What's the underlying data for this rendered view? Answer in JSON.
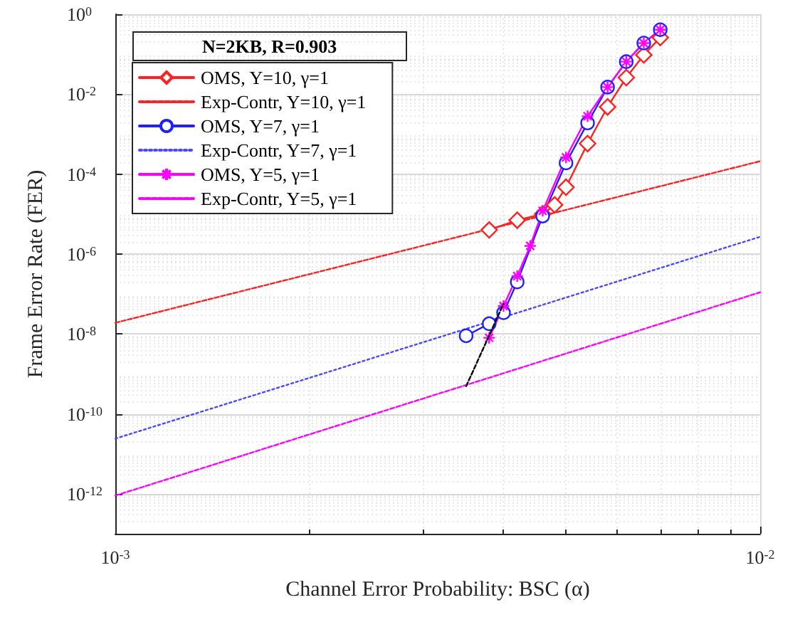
{
  "chart_data": {
    "type": "line",
    "xlabel": "Channel Error Probability: BSC (α)",
    "ylabel": "Frame Error Rate (FER)",
    "legend_title": "N=2KB, R=0.903",
    "log": "xy",
    "grid": true,
    "legend": "top left",
    "xlim": [
      0.001,
      0.01
    ],
    "xticks": [
      {
        "value": 0.001,
        "label": "10$^{-3}$"
      },
      {
        "value": 0.01,
        "label": "10$^{-2}$"
      }
    ],
    "ylim": [
      1e-13,
      1
    ],
    "yticks": [
      {
        "value": 1e-12,
        "label": "10$^{-12}$"
      },
      {
        "value": 1e-10,
        "label": "10$^{-10}$"
      },
      {
        "value": 1e-08,
        "label": "10$^{-8}$"
      },
      {
        "value": 1e-06,
        "label": "10$^{-6}$"
      },
      {
        "value": 0.0001,
        "label": "10$^{-4}$"
      },
      {
        "value": 0.01,
        "label": "10$^{-2}$"
      },
      {
        "value": 1,
        "label": "10$^{0}$"
      }
    ],
    "series": [
      {
        "name": "OMS, Y=10, γ=1",
        "color": "#ff2020",
        "marker": "diamond",
        "line_style": "solid",
        "x": [
          0.0038,
          0.0042,
          0.0046,
          0.0048,
          0.005,
          0.0054,
          0.0058,
          0.0062,
          0.0066,
          0.007
        ],
        "values": [
          4e-06,
          7e-06,
          1e-05,
          1.7e-05,
          4.7e-05,
          0.00058,
          0.0048,
          0.026,
          0.096,
          0.26
        ]
      },
      {
        "name": "Exp-Contr, Y=10, γ=1",
        "color": "#ff2020",
        "marker": "none",
        "line_style": "dashed",
        "x": [
          0.001,
          0.01
        ],
        "values": [
          1.9e-08,
          0.00021
        ]
      },
      {
        "name": "OMS, Y=7, γ=1",
        "color": "#2020ff",
        "marker": "circle",
        "line_style": "solid",
        "x": [
          0.0035,
          0.0038,
          0.004,
          0.0042,
          0.0046,
          0.005,
          0.0054,
          0.0058,
          0.0062,
          0.0066,
          0.007
        ],
        "values": [
          9e-09,
          1.8e-08,
          3.4e-08,
          2e-07,
          8.9e-06,
          0.00019,
          0.0019,
          0.015,
          0.065,
          0.19,
          0.41
        ]
      },
      {
        "name": "Exp-Contr, Y=7, γ=1",
        "color": "#4848ff",
        "marker": "none",
        "line_style": "dotted",
        "x": [
          0.001,
          0.01
        ],
        "values": [
          2.4e-11,
          2.7e-06
        ]
      },
      {
        "name": "OMS, Y=5, γ=1",
        "color": "#ff00ff",
        "marker": "cross",
        "line_style": "solid",
        "x": [
          0.0038,
          0.004,
          0.0042,
          0.0044,
          0.0046,
          0.005,
          0.0054,
          0.0058,
          0.0062,
          0.0066,
          0.007
        ],
        "values": [
          8e-09,
          5e-08,
          2.8e-07,
          1.6e-06,
          1.2e-05,
          0.00026,
          0.0028,
          0.015,
          0.065,
          0.19,
          0.41
        ]
      },
      {
        "name": "Exp-Contr, Y=5, γ=1",
        "color": "#ff00ff",
        "marker": "none",
        "line_style": "dashed",
        "x": [
          0.001,
          0.01
        ],
        "values": [
          9e-13,
          1.1e-07
        ]
      },
      {
        "color": "#000000",
        "marker": "none",
        "line_style": "dashed",
        "x": [
          0.0035,
          0.004
        ],
        "values": [
          4.9e-10,
          5.7e-08
        ]
      }
    ]
  }
}
